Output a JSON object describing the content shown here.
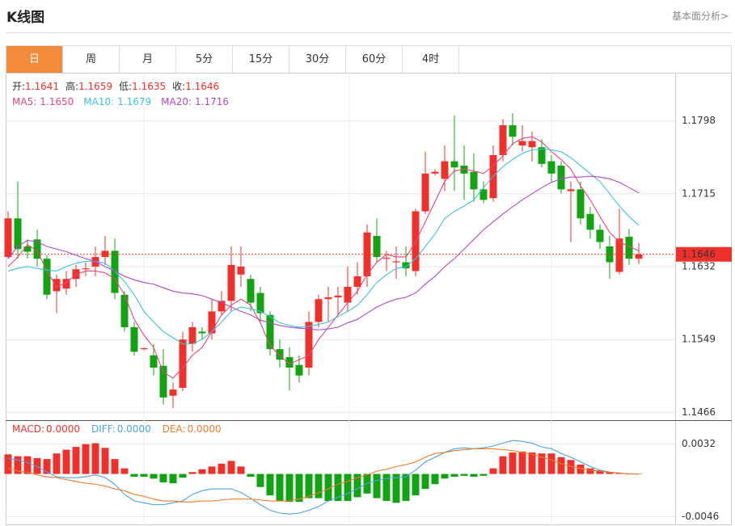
{
  "header": {
    "title": "K线图",
    "link": "基本面分析>"
  },
  "tabs": [
    "日",
    "周",
    "月",
    "5分",
    "15分",
    "30分",
    "60分",
    "4时"
  ],
  "active_tab": 0,
  "chart_data": [
    {
      "type": "candlestick",
      "ohlc_info": [
        {
          "name": "开:",
          "value": 1.1641
        },
        {
          "name": "高:",
          "value": 1.1659
        },
        {
          "name": "低:",
          "value": 1.1635
        },
        {
          "name": "收:",
          "value": 1.1646
        }
      ],
      "up_color": "#f0302a",
      "down_color": "#12a312",
      "open": [
        1.1643,
        1.1687,
        1.1655,
        1.1663,
        1.1641,
        1.1604,
        1.1607,
        1.1618,
        1.1629,
        1.1632,
        1.1643,
        1.165,
        1.16,
        1.1563,
        1.1538,
        1.1531,
        1.1519,
        1.1485,
        1.1494,
        1.1544,
        1.1558,
        1.1556,
        1.1581,
        1.1593,
        1.1623,
        1.1618,
        1.1602,
        1.1577,
        1.1538,
        1.1529,
        1.152,
        1.1517,
        1.1569,
        1.1595,
        1.1597,
        1.1591,
        1.1609,
        1.1621,
        1.1667,
        1.1641,
        1.1637,
        1.1637,
        1.1627,
        1.1695,
        1.1738,
        1.1732,
        1.1752,
        1.1747,
        1.174,
        1.172,
        1.171,
        1.1759,
        1.1793,
        1.177,
        1.1768,
        1.1768,
        1.1752,
        1.1747,
        1.1718,
        1.172,
        1.1692,
        1.1674,
        1.1655,
        1.1626,
        1.1666,
        1.1641
      ],
      "high": [
        1.1695,
        1.1729,
        1.1663,
        1.1674,
        1.1645,
        1.1623,
        1.1627,
        1.1634,
        1.1637,
        1.1655,
        1.1667,
        1.1664,
        1.1604,
        1.1569,
        1.154,
        1.1544,
        1.1538,
        1.15,
        1.1558,
        1.1569,
        1.1563,
        1.1595,
        1.1604,
        1.1655,
        1.1655,
        1.1623,
        1.1609,
        1.1581,
        1.1549,
        1.154,
        1.1531,
        1.1581,
        1.16,
        1.1609,
        1.1609,
        1.1632,
        1.1637,
        1.168,
        1.1687,
        1.165,
        1.1655,
        1.1655,
        1.1698,
        1.1763,
        1.1743,
        1.177,
        1.1804,
        1.177,
        1.1761,
        1.1729,
        1.177,
        1.18,
        1.1807,
        1.1793,
        1.1786,
        1.1777,
        1.1759,
        1.1752,
        1.1729,
        1.1729,
        1.17,
        1.168,
        1.1667,
        1.1698,
        1.1675,
        1.1659
      ],
      "low": [
        1.1641,
        1.1641,
        1.1641,
        1.1632,
        1.1595,
        1.1579,
        1.16,
        1.1609,
        1.1621,
        1.1621,
        1.1634,
        1.1595,
        1.1558,
        1.1531,
        1.1537,
        1.1508,
        1.1475,
        1.1471,
        1.149,
        1.1535,
        1.1549,
        1.1549,
        1.1577,
        1.1581,
        1.1609,
        1.1581,
        1.1569,
        1.1531,
        1.1517,
        1.1491,
        1.15,
        1.1508,
        1.1563,
        1.1569,
        1.1577,
        1.1581,
        1.16,
        1.1609,
        1.1637,
        1.1627,
        1.1618,
        1.1621,
        1.1621,
        1.1692,
        1.1736,
        1.1718,
        1.1718,
        1.1708,
        1.1706,
        1.1704,
        1.1706,
        1.1752,
        1.177,
        1.1763,
        1.1752,
        1.1745,
        1.1729,
        1.1715,
        1.166,
        1.168,
        1.1664,
        1.1652,
        1.1618,
        1.1623,
        1.1634,
        1.1635
      ],
      "close": [
        1.1687,
        1.1652,
        1.1649,
        1.1641,
        1.16,
        1.1618,
        1.1618,
        1.1629,
        1.163,
        1.1643,
        1.165,
        1.1602,
        1.1563,
        1.1535,
        1.1539,
        1.1517,
        1.1483,
        1.1492,
        1.1549,
        1.1563,
        1.1556,
        1.1581,
        1.1593,
        1.1634,
        1.1632,
        1.1591,
        1.1579,
        1.1538,
        1.1526,
        1.1517,
        1.1508,
        1.1569,
        1.1595,
        1.1597,
        1.1599,
        1.1609,
        1.1621,
        1.1671,
        1.1643,
        1.1642,
        1.1638,
        1.163,
        1.1695,
        1.1738,
        1.174,
        1.1752,
        1.1745,
        1.1738,
        1.172,
        1.1708,
        1.1759,
        1.1793,
        1.178,
        1.1775,
        1.1775,
        1.1749,
        1.1738,
        1.172,
        1.172,
        1.1687,
        1.1674,
        1.166,
        1.1637,
        1.1664,
        1.1641,
        1.1646
      ],
      "series": [
        {
          "name": "MA5:",
          "color": "#e8457f",
          "last": {
            "value": 1.165,
            "label": "1.1650"
          },
          "values": [
            1.1632,
            1.1643,
            1.1657,
            1.165,
            1.1627,
            1.1609,
            1.1614,
            1.1623,
            1.1627,
            1.1627,
            1.1625,
            1.1618,
            1.16,
            1.1572,
            1.1554,
            1.154,
            1.1512,
            1.1505,
            1.1517,
            1.1531,
            1.154,
            1.1558,
            1.1577,
            1.1588,
            1.1595,
            1.1588,
            1.1568,
            1.1542,
            1.1531,
            1.1521,
            1.1526,
            1.1531,
            1.1549,
            1.1563,
            1.1577,
            1.1591,
            1.1604,
            1.1623,
            1.1637,
            1.1646,
            1.1643,
            1.1643,
            1.166,
            1.1683,
            1.1706,
            1.1729,
            1.1741,
            1.1743,
            1.1741,
            1.1738,
            1.1747,
            1.1758,
            1.1772,
            1.1778,
            1.178,
            1.1774,
            1.1763,
            1.1754,
            1.1743,
            1.1724,
            1.1708,
            1.1689,
            1.1671,
            1.166,
            1.1655,
            1.165
          ]
        },
        {
          "name": "MA10:",
          "color": "#3ec3dc",
          "last": {
            "value": 1.1679,
            "label": "1.1679"
          },
          "values": [
            1.1627,
            1.163,
            1.1632,
            1.163,
            1.1628,
            1.1627,
            1.1632,
            1.1636,
            1.1638,
            1.1638,
            1.1636,
            1.1627,
            1.1615,
            1.16,
            1.1581,
            1.1569,
            1.1558,
            1.1551,
            1.1544,
            1.1544,
            1.1549,
            1.1558,
            1.1569,
            1.1581,
            1.1586,
            1.1584,
            1.1581,
            1.1575,
            1.1568,
            1.1565,
            1.1563,
            1.1564,
            1.1566,
            1.1569,
            1.1575,
            1.1581,
            1.1588,
            1.16,
            1.1614,
            1.1623,
            1.163,
            1.1632,
            1.1641,
            1.1655,
            1.1669,
            1.1687,
            1.1695,
            1.1701,
            1.1708,
            1.1722,
            1.1735,
            1.1746,
            1.1754,
            1.1761,
            1.1765,
            1.1766,
            1.1765,
            1.1763,
            1.1756,
            1.1747,
            1.1738,
            1.1729,
            1.1715,
            1.1701,
            1.1689,
            1.1679
          ]
        },
        {
          "name": "MA20:",
          "color": "#b04bc6",
          "last": {
            "value": 1.1716,
            "label": "1.1716"
          },
          "values": [
            1.1641,
            1.1655,
            1.1662,
            1.166,
            1.1655,
            1.1652,
            1.1649,
            1.1645,
            1.1641,
            1.1638,
            1.1632,
            1.1627,
            1.1621,
            1.1617,
            1.1614,
            1.1612,
            1.1608,
            1.1604,
            1.1602,
            1.1601,
            1.1599,
            1.1595,
            1.1591,
            1.1586,
            1.1581,
            1.1577,
            1.1571,
            1.1568,
            1.1565,
            1.1563,
            1.1562,
            1.1561,
            1.156,
            1.1561,
            1.1563,
            1.1568,
            1.1572,
            1.1579,
            1.1586,
            1.1591,
            1.1595,
            1.1597,
            1.1602,
            1.1612,
            1.1621,
            1.1632,
            1.1641,
            1.1652,
            1.1663,
            1.1674,
            1.1683,
            1.1692,
            1.17,
            1.1708,
            1.1715,
            1.1722,
            1.1728,
            1.1732,
            1.1734,
            1.1734,
            1.1735,
            1.1734,
            1.1732,
            1.1728,
            1.1722,
            1.1716
          ]
        }
      ],
      "last_price": 1.1646,
      "price_color": "#f0302a",
      "ylim": [
        1.1459,
        1.1851
      ],
      "yticks": [
        1.1466,
        1.1549,
        1.1632,
        1.1715,
        1.1798
      ],
      "grid": true
    },
    {
      "type": "macd",
      "histogram": {
        "name": "MACD:",
        "color": "#f0302a",
        "last": {
          "value": 0,
          "label": "0.0000"
        },
        "up_color": "#f0302a",
        "down_color": "#12a312",
        "values": [
          0.0021,
          0.0019,
          0.0019,
          0.0017,
          0.0016,
          0.0022,
          0.0026,
          0.0029,
          0.0032,
          0.0033,
          0.0028,
          0.0016,
          0.0006,
          -0.0003,
          -0.0003,
          -0.0005,
          -0.0009,
          -0.001,
          -0.0004,
          0.0002,
          0.0005,
          0.0008,
          0.0011,
          0.0014,
          0.0008,
          -0.0003,
          -0.0014,
          -0.0023,
          -0.0029,
          -0.003,
          -0.003,
          -0.0026,
          -0.0026,
          -0.0029,
          -0.0029,
          -0.0029,
          -0.0025,
          -0.0021,
          -0.0026,
          -0.0029,
          -0.0031,
          -0.0029,
          -0.0023,
          -0.0016,
          -0.0011,
          -0.0005,
          -0.0003,
          -0.0002,
          -0.0003,
          -0.0002,
          0.0006,
          0.0019,
          0.0023,
          0.0024,
          0.0023,
          0.0022,
          0.0022,
          0.0018,
          0.0015,
          0.001,
          0.0006,
          0.0004,
          0.0002,
          0.0001,
          0,
          0
        ]
      },
      "series": [
        {
          "name": "DIFF:",
          "color": "#4aa3e8",
          "last": {
            "value": 0,
            "label": "0.0000"
          },
          "values": [
            0.0017,
            0.0015,
            0.0012,
            0.0008,
            0.0002,
            -0.0003,
            -0.0004,
            -0.0004,
            -0.0003,
            -0.0001,
            -0.0004,
            -0.0011,
            -0.0022,
            -0.0029,
            -0.0031,
            -0.0033,
            -0.0033,
            -0.0031,
            -0.0029,
            -0.0022,
            -0.0018,
            -0.0016,
            -0.0016,
            -0.0016,
            -0.002,
            -0.0026,
            -0.0033,
            -0.0039,
            -0.0042,
            -0.0043,
            -0.0042,
            -0.0039,
            -0.0035,
            -0.0029,
            -0.0025,
            -0.0021,
            -0.0016,
            -0.001,
            -0.0007,
            -0.0005,
            -0.0004,
            -0.0003,
            0.0004,
            0.0013,
            0.0018,
            0.0023,
            0.0027,
            0.0028,
            0.0027,
            0.0028,
            0.003,
            0.0033,
            0.0036,
            0.0035,
            0.0033,
            0.0029,
            0.0027,
            0.0022,
            0.0018,
            0.0013,
            0.0008,
            0.0004,
            0.0002,
            0.0001,
            0,
            0
          ]
        },
        {
          "name": "DEA:",
          "color": "#f07b2a",
          "last": {
            "value": 0,
            "label": "0.0000"
          },
          "values": [
            0.0006,
            0.0003,
            0.0002,
            -0.0001,
            -0.0003,
            -0.0004,
            -0.0006,
            -0.0008,
            -0.001,
            -0.0011,
            -0.0013,
            -0.0016,
            -0.0018,
            -0.0022,
            -0.0024,
            -0.0027,
            -0.0029,
            -0.0029,
            -0.003,
            -0.003,
            -0.0029,
            -0.0029,
            -0.0028,
            -0.0027,
            -0.0027,
            -0.0027,
            -0.0028,
            -0.0029,
            -0.0029,
            -0.0029,
            -0.0027,
            -0.0024,
            -0.002,
            -0.0016,
            -0.0011,
            -0.0008,
            -0.0004,
            -0.0001,
            0.0003,
            0.0005,
            0.0008,
            0.001,
            0.0013,
            0.0018,
            0.0022,
            0.0023,
            0.0025,
            0.0026,
            0.0027,
            0.0027,
            0.0027,
            0.0026,
            0.0025,
            0.0023,
            0.0021,
            0.0018,
            0.0015,
            0.0011,
            0.0008,
            0.0006,
            0.0004,
            0.0003,
            0.0002,
            0.0001,
            0,
            0
          ]
        }
      ],
      "ylim": [
        -0.0055,
        0.0056
      ],
      "yticks": [
        -0.0046,
        0.0032
      ],
      "grid": true
    }
  ]
}
